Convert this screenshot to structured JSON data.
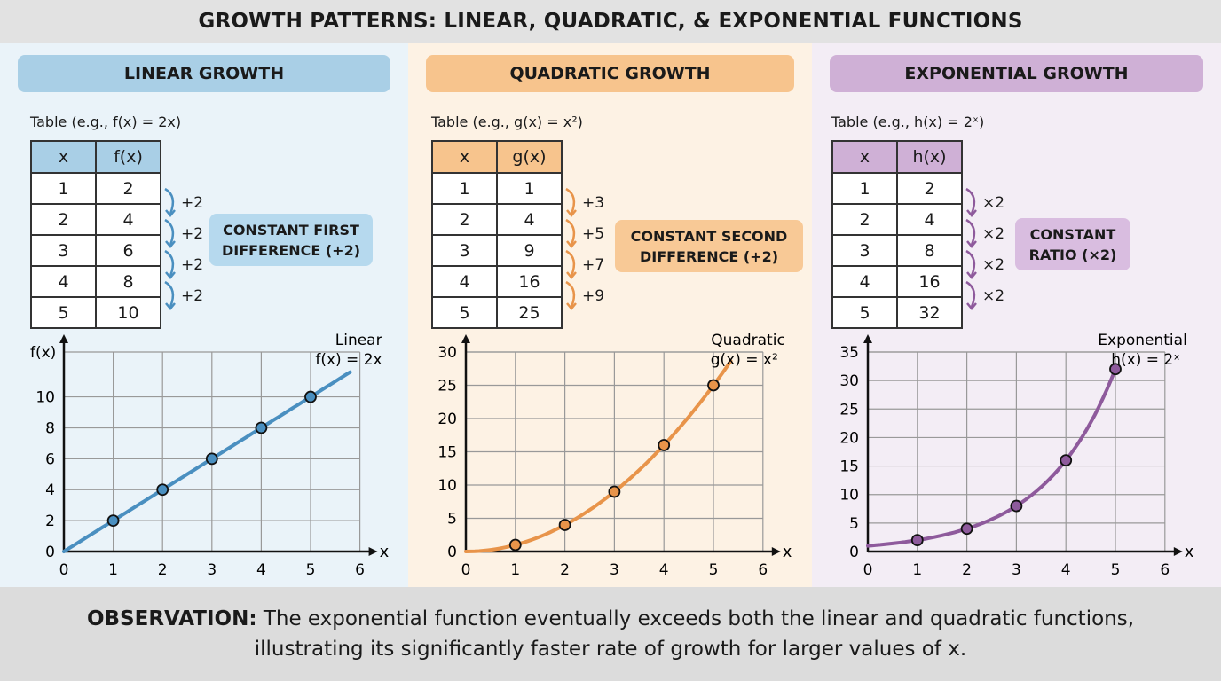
{
  "title": "GROWTH PATTERNS: LINEAR, QUADRATIC, & EXPONENTIAL FUNCTIONS",
  "colors": {
    "linear": "#4a8fc0",
    "quadratic": "#e8944a",
    "exponential": "#8e5a9c"
  },
  "panels": [
    {
      "header": "LINEAR GROWTH",
      "table_label": "Table (e.g., f(x) = 2x)",
      "col_x": "x",
      "col_f": "f(x)",
      "rows": [
        [
          "1",
          "2"
        ],
        [
          "2",
          "4"
        ],
        [
          "3",
          "6"
        ],
        [
          "4",
          "8"
        ],
        [
          "5",
          "10"
        ]
      ],
      "diffs": [
        "+2",
        "+2",
        "+2",
        "+2"
      ],
      "callout_line1": "CONSTANT FIRST",
      "callout_line2": "DIFFERENCE (+2)"
    },
    {
      "header": "QUADRATIC GROWTH",
      "table_label": "Table (e.g., g(x) = x²)",
      "col_x": "x",
      "col_f": "g(x)",
      "rows": [
        [
          "1",
          "1"
        ],
        [
          "2",
          "4"
        ],
        [
          "3",
          "9"
        ],
        [
          "4",
          "16"
        ],
        [
          "5",
          "25"
        ]
      ],
      "diffs": [
        "+3",
        "+5",
        "+7",
        "+9"
      ],
      "callout_line1": "CONSTANT SECOND",
      "callout_line2": "DIFFERENCE (+2)"
    },
    {
      "header": "EXPONENTIAL GROWTH",
      "table_label": "Table (e.g., h(x) = 2ˣ)",
      "col_x": "x",
      "col_f": "h(x)",
      "rows": [
        [
          "1",
          "2"
        ],
        [
          "2",
          "4"
        ],
        [
          "3",
          "8"
        ],
        [
          "4",
          "16"
        ],
        [
          "5",
          "32"
        ]
      ],
      "diffs": [
        "×2",
        "×2",
        "×2",
        "×2"
      ],
      "callout_line1": "CONSTANT",
      "callout_line2": "RATIO (×2)"
    }
  ],
  "chart_data": [
    {
      "type": "line",
      "label_line1": "Linear",
      "label_line2": "f(x) = 2x",
      "xlabel": "x",
      "ylabel": "f(x)",
      "xlim": [
        0,
        6
      ],
      "ylim": [
        0,
        12.9
      ],
      "xticks": [
        0,
        1,
        2,
        3,
        4,
        5,
        6
      ],
      "yticks": [
        0,
        2,
        4,
        6,
        8,
        10
      ],
      "grid": true,
      "points_x": [
        1,
        2,
        3,
        4,
        5
      ],
      "points_y": [
        2,
        4,
        6,
        8,
        10
      ],
      "curve": "2x",
      "curve_domain": [
        0,
        5.8
      ]
    },
    {
      "type": "line",
      "label_line1": "Quadratic",
      "label_line2": "g(x) = x²",
      "xlabel": "x",
      "ylabel": "",
      "xlim": [
        0,
        6
      ],
      "ylim": [
        0,
        30
      ],
      "xticks": [
        0,
        1,
        2,
        3,
        4,
        5,
        6
      ],
      "yticks": [
        0,
        5,
        10,
        15,
        20,
        25,
        30
      ],
      "grid": true,
      "points_x": [
        1,
        2,
        3,
        4,
        5
      ],
      "points_y": [
        1,
        4,
        9,
        16,
        25
      ],
      "curve": "x^2",
      "curve_domain": [
        0,
        5.35
      ]
    },
    {
      "type": "line",
      "label_line1": "Exponential",
      "label_line2": "h(x) = 2ˣ",
      "xlabel": "x",
      "ylabel": "",
      "xlim": [
        0,
        6
      ],
      "ylim": [
        0,
        35
      ],
      "xticks": [
        0,
        1,
        2,
        3,
        4,
        5,
        6
      ],
      "yticks": [
        0,
        5,
        10,
        15,
        20,
        25,
        30,
        35
      ],
      "grid": true,
      "points_x": [
        1,
        2,
        3,
        4,
        5
      ],
      "points_y": [
        2,
        4,
        8,
        16,
        32
      ],
      "curve": "2^x",
      "curve_domain": [
        0,
        5
      ]
    }
  ],
  "observation": {
    "bold": "OBSERVATION:",
    "text": " The exponential function eventually exceeds both the linear and quadratic functions, illustrating its significantly faster rate of growth for larger values of x."
  }
}
